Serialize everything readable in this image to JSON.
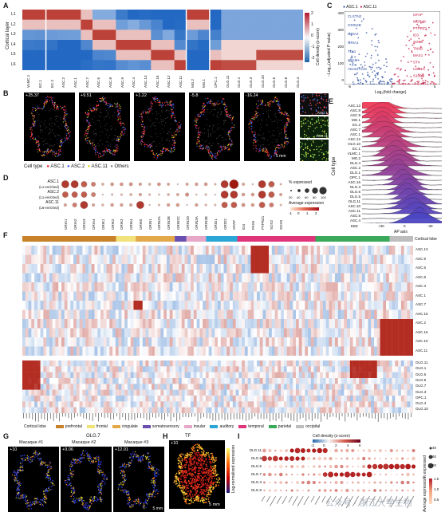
{
  "panel_labels": [
    "A",
    "B",
    "C",
    "D",
    "E",
    "F",
    "G",
    "H",
    "I"
  ],
  "panelA": {
    "ylabel": "Cortical layer",
    "layers": [
      "L1",
      "L2",
      "L3",
      "L4",
      "L5",
      "L6"
    ],
    "columns": [
      "VLMC.1",
      "EC.1",
      "EC.2",
      "ASC.2",
      "ASC.1",
      "ASC.7",
      "ASC.6",
      "ASC.8",
      "ASC.9",
      "ASC.4",
      "ASC.13",
      "ASC.16",
      "ASC.12",
      "ASC.11",
      "MG.2",
      "MG.1",
      "OPC.1",
      "OLG.11",
      "OLG.1",
      "OLG.3",
      "OLG.10",
      "OLG.5",
      "OLG.6",
      "OLG.4"
    ],
    "cbar_title": "Cell density (z-score)",
    "cbar_ticks": [
      "2",
      "1",
      "0",
      "-1",
      "-2"
    ]
  },
  "panelB": {
    "values": [
      "+25.37",
      "+9.51",
      "+1.22",
      "-5.8",
      "-16.24"
    ],
    "scale": "5 mm",
    "insets": [
      "ASC.1",
      "ASC.11"
    ],
    "legend_title": "Cell type",
    "legend": [
      "ASC.1",
      "ASC.2",
      "ASC.11",
      "Others"
    ]
  },
  "panelC": {
    "legend": [
      "ASC.1",
      "ASC.11"
    ],
    "ylabel": "−Log₁₀(adjusted P value)",
    "xlabel": "Log₂(fold change)",
    "yticks": [
      "400",
      "300",
      "200",
      "100",
      "0"
    ],
    "xticks": [
      "-5",
      "0",
      "5"
    ],
    "left_genes": [
      "CLSTN2",
      "GRIN2B",
      "GRIA2",
      "GRIA1",
      "TLL1",
      "SPAM",
      "ADAMTS18"
    ],
    "right_genes": [
      "GFAP",
      "WDR49",
      "PTPRZ1",
      "ID3",
      "SOX6",
      "TNXB",
      "MAX1",
      "ST4",
      "USH1C",
      "S100B"
    ]
  },
  "panelD": {
    "rows": [
      "ASC.1\n(L1-enriched)",
      "ASC.2\n(L1-enriched)",
      "ASC.11\n(L6-enriched)"
    ],
    "row_names": [
      "ASC.1",
      "ASC.2",
      "ASC.11"
    ],
    "row_notes": [
      "(L1-enriched)",
      "(L1-enriched)",
      "(L6-enriched)"
    ],
    "genes": [
      "GRIA1",
      "GRIA2",
      "GRIA3",
      "GRIA4",
      "GRIK1",
      "GRIK2",
      "GRIK3",
      "GRIK4",
      "GRIK5",
      "GRIN1",
      "GRIN2A",
      "GRIN2B",
      "GRIN2C",
      "GRIN2D",
      "GRIN3A",
      "GRIN3B",
      "GRID1",
      "GRID2",
      "GFAP",
      "ID4",
      "PAX6",
      "PTPRZ1",
      "SOX2",
      "SOX9"
    ],
    "size_title": "% expressed",
    "size_ticks": [
      "20",
      "40",
      "60",
      "80",
      "100"
    ],
    "color_title": "Average expression",
    "color_ticks": [
      "-1",
      "0",
      "1",
      "2"
    ]
  },
  "panelE": {
    "ylabel": "Cell type",
    "xlabel": "AP axis",
    "xticks": [
      "EBZ",
      "+30",
      "0",
      "-30"
    ],
    "rows": [
      "ASC.13",
      "ASC.8",
      "ASC.9",
      "MG.1",
      "EC.2",
      "ASC.7",
      "ASC.1",
      "ASC.12",
      "OLG.10",
      "EC.1",
      "VLMC.1",
      "MG.2",
      "OLG.4",
      "ASC.2",
      "OLG.1",
      "OPC.1",
      "ASC.16",
      "OLG.3",
      "OLG.6",
      "OLG.5",
      "OLG.11",
      "ASC.10",
      "ASC.11",
      "ASC.6",
      "ASC.4"
    ]
  },
  "panelF": {
    "lobe_title": "Cortical lobe",
    "asc_rows": [
      "ASC.13",
      "ASC.9",
      "ASC.6",
      "ASC.8",
      "ASC.3",
      "ASC.1",
      "ASC.7",
      "ASC.15",
      "ASC.2",
      "ASC.16",
      "ASC.10",
      "ASC.11"
    ],
    "olg_rows": [
      "OLG.11",
      "OLG.1",
      "OLG.5",
      "OLG.6",
      "OLG.7",
      "OLG.3",
      "OPC.1",
      "OLG.4",
      "OLG.10"
    ],
    "lobes": [
      "prefrontal",
      "frontal",
      "cingulate",
      "somatosensory",
      "insular",
      "auditory",
      "temporal",
      "parietal",
      "occipital"
    ],
    "lobe_colors": [
      "#c8822a",
      "#f2e27a",
      "#e3a84a",
      "#6a4fb0",
      "#e7a8c8",
      "#2aa6d6",
      "#e0347a",
      "#3aaa5a",
      "#bdbdbd"
    ]
  },
  "panelG": {
    "title": "OLG.7",
    "titles": [
      "Macaque #1",
      "Macaque #2",
      "Macaque #3"
    ],
    "values": [
      "+10",
      "+9.06",
      "+12.01"
    ],
    "scale": "5 mm"
  },
  "panelH": {
    "title": "TF",
    "value": "+10",
    "cbar": "Log-normalized expression",
    "scale": "5 mm"
  },
  "panelI": {
    "rows": [
      "OLG.11",
      "OLG.8",
      "OLG.6",
      "OLG.7",
      "OLG.3",
      "OLG.9"
    ],
    "cbar_title": "Cell density (z-score)",
    "cbar_ticks": [
      "-2",
      "0",
      "2",
      "4",
      "6"
    ],
    "size_title": "% expressed",
    "size_ticks": [
      "40",
      "60",
      "80"
    ],
    "color_title": "Average expression",
    "color_ticks": [
      "1.5",
      "1.0",
      "0.5"
    ]
  },
  "watermark": "公众号 · 浙江大学生物"
}
